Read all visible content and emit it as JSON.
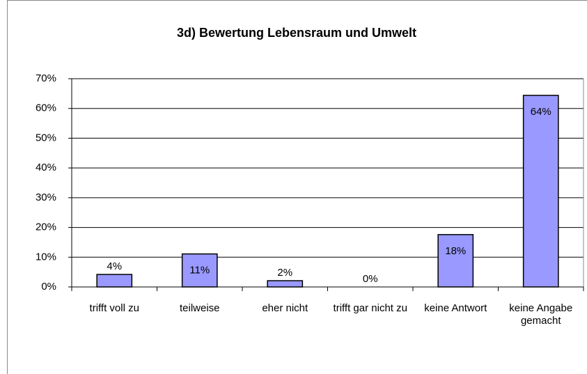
{
  "chart_data": {
    "type": "bar",
    "title": "3d) Bewertung Lebensraum und Umwelt",
    "categories": [
      "trifft voll zu",
      "teilweise",
      "eher nicht",
      "trifft gar nicht zu",
      "keine Antwort",
      "keine Angabe gemacht"
    ],
    "values": [
      4.2,
      11.1,
      2.1,
      0,
      17.6,
      64.4
    ],
    "value_labels": [
      "4%",
      "11%",
      "2%",
      "0%",
      "18%",
      "64%"
    ],
    "color": "#9999ff",
    "ylim": [
      0,
      70
    ],
    "yticks": [
      {
        "value": 0,
        "label": "0%"
      },
      {
        "value": 10,
        "label": "10%"
      },
      {
        "value": 20,
        "label": "20%"
      },
      {
        "value": 30,
        "label": "30%"
      },
      {
        "value": 40,
        "label": "40%"
      },
      {
        "value": 50,
        "label": "50%"
      },
      {
        "value": 60,
        "label": "60%"
      },
      {
        "value": 70,
        "label": "70%"
      }
    ],
    "grid": true
  }
}
